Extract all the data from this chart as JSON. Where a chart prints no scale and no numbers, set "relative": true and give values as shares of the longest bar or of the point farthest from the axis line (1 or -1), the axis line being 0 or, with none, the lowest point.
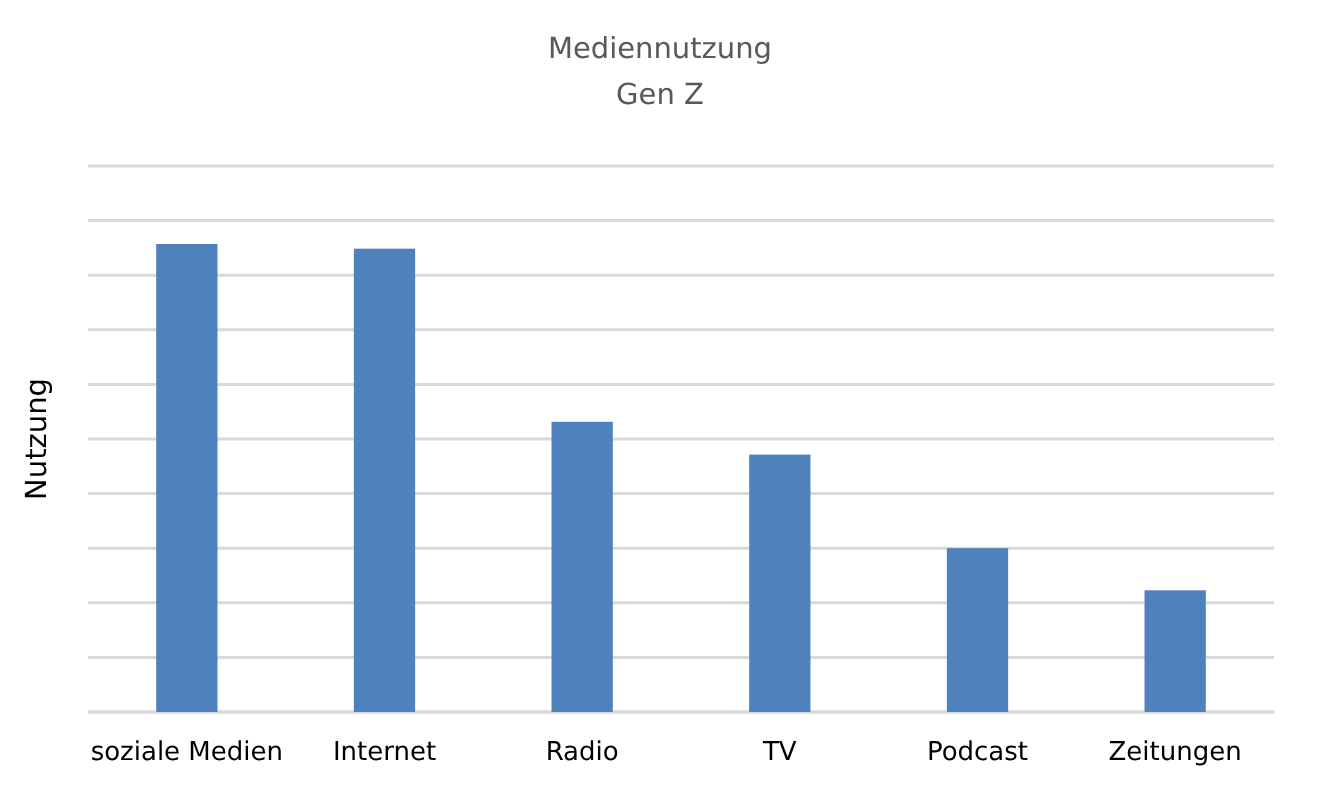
{
  "chart_data": {
    "type": "bar",
    "title": "Mediennutzung",
    "subtitle": "Gen Z",
    "ylabel": "Nutzung",
    "categories": [
      "soziale Medien",
      "Internet",
      "Radio",
      "TV",
      "Podcast",
      "Zeitungen"
    ],
    "values": [
      1,
      0.99,
      0.62,
      0.55,
      0.35,
      0.26
    ],
    "color": "#4f81bd",
    "relative": true,
    "grid": true,
    "tick_labels": "x"
  }
}
